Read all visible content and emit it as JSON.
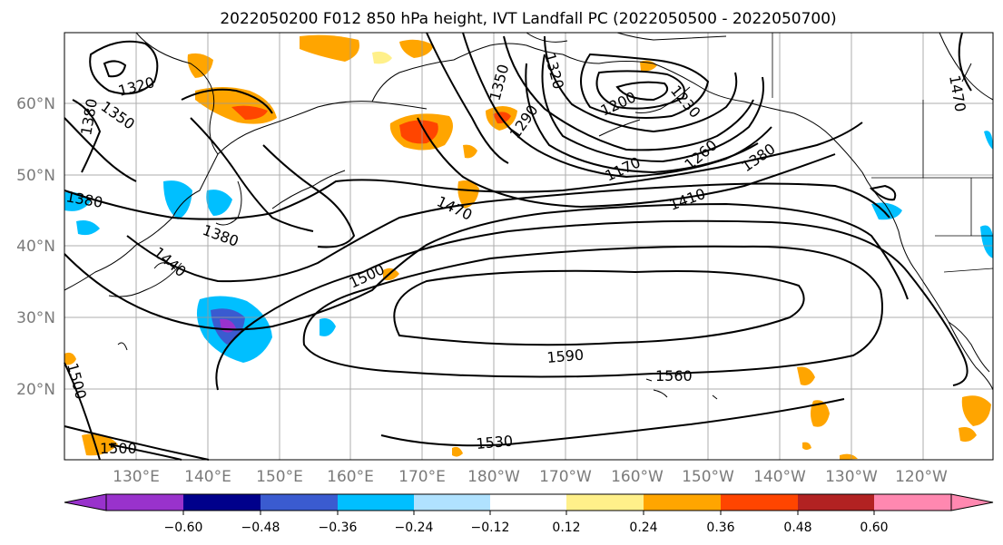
{
  "title": "2022050200 F012 850 hPa height, IVT Landfall PC (2022050500 - 2022050700)",
  "lat_labels": [
    "60°N",
    "50°N",
    "40°N",
    "30°N",
    "20°N"
  ],
  "lon_labels": [
    "130°E",
    "140°E",
    "150°E",
    "160°E",
    "170°E",
    "180°W",
    "170°W",
    "160°W",
    "150°W",
    "140°W",
    "130°W",
    "120°W"
  ],
  "contour_labels": [
    "1320",
    "1350",
    "1380",
    "1380",
    "1380",
    "1440",
    "1500",
    "1500",
    "1470",
    "1350",
    "1290",
    "1320",
    "1200",
    "1230",
    "1170",
    "1260",
    "1380",
    "1410",
    "1470",
    "1500",
    "1590",
    "1560",
    "1530"
  ],
  "colorbar": {
    "colors": [
      "#9932CC",
      "#00008B",
      "#3A5BD0",
      "#00BFFF",
      "#B0E2FF",
      "#FFFFFF",
      "#FFF08A",
      "#FFA500",
      "#FF4500",
      "#B22222",
      "#FF88B0"
    ],
    "tick_labels": [
      "−0.60",
      "−0.48",
      "−0.36",
      "−0.24",
      "−0.12",
      "0.12",
      "0.24",
      "0.36",
      "0.48",
      "0.60"
    ]
  }
}
